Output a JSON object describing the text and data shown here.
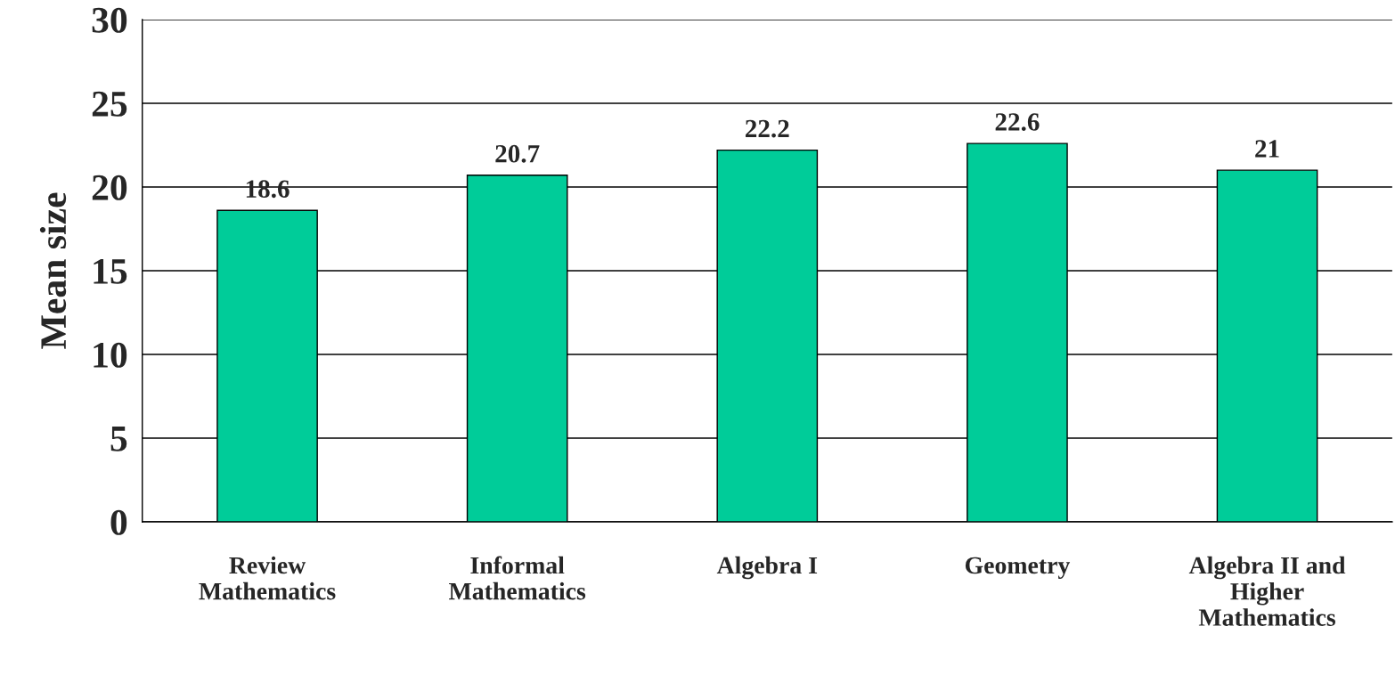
{
  "chart_data": {
    "type": "bar",
    "ylabel": "Mean size",
    "categories": [
      "Review\nMathematics",
      "Informal\nMathematics",
      "Algebra I",
      "Geometry",
      "Algebra II and\nHigher\nMathematics"
    ],
    "values": [
      18.6,
      20.7,
      22.2,
      22.6,
      21
    ],
    "color": "#00cc99",
    "ylim": [
      0,
      30
    ],
    "yticks": [
      0,
      5,
      10,
      15,
      20,
      25,
      30
    ],
    "grid": "y",
    "data_labels": true
  }
}
